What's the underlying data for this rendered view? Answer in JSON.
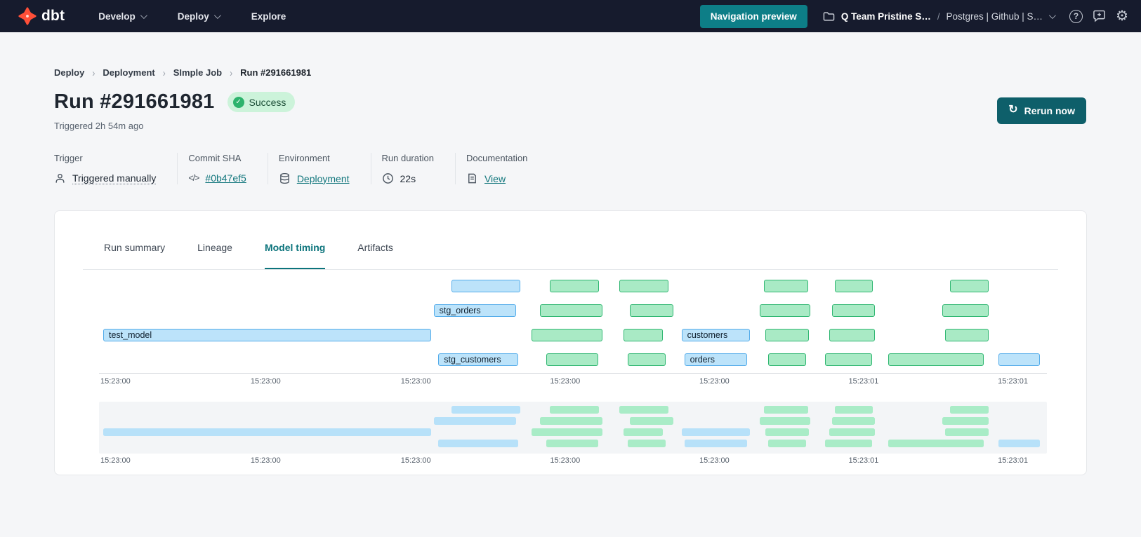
{
  "nav": {
    "brand": "dbt",
    "menus": [
      {
        "label": "Develop",
        "chevron": true
      },
      {
        "label": "Deploy",
        "chevron": true
      },
      {
        "label": "Explore",
        "chevron": false
      }
    ],
    "preview_button": "Navigation preview",
    "account": "Q Team Pristine S…",
    "account_separator": "/",
    "project": "Postgres | Github | S…",
    "help_glyph": "?",
    "gear_glyph": "⚙"
  },
  "breadcrumb": {
    "separator": "›",
    "items": [
      "Deploy",
      "Deployment",
      "SImple Job",
      "Run #291661981"
    ]
  },
  "header": {
    "title": "Run #291661981",
    "status": "Success",
    "check_glyph": "✓",
    "triggered": "Triggered 2h 54m ago",
    "rerun_label": "Rerun now",
    "rerun_glyph": "↻"
  },
  "meta": {
    "groups": [
      {
        "label": "Trigger",
        "value": "Triggered manually",
        "icon": "person-icon",
        "style": "dotted"
      },
      {
        "label": "Commit SHA",
        "value": "#0b47ef5",
        "icon": "code-icon",
        "style": "link"
      },
      {
        "label": "Environment",
        "value": "Deployment",
        "icon": "database-icon",
        "style": "link"
      },
      {
        "label": "Run duration",
        "value": "22s",
        "icon": "clock-icon",
        "style": "plain"
      },
      {
        "label": "Documentation",
        "value": "View",
        "icon": "document-icon",
        "style": "link"
      }
    ]
  },
  "panel": {
    "tabs": [
      "Run summary",
      "Lineage",
      "Model timing",
      "Artifacts"
    ],
    "active_tab": "Model timing"
  },
  "chart_data": {
    "type": "gantt",
    "title": "Model timing",
    "time_axis": {
      "labels": [
        {
          "text": "15:23:00",
          "x_pct": 1.3
        },
        {
          "text": "15:23:00",
          "x_pct": 17.3
        },
        {
          "text": "15:23:00",
          "x_pct": 33.3
        },
        {
          "text": "15:23:00",
          "x_pct": 49.2
        },
        {
          "text": "15:23:00",
          "x_pct": 65.1
        },
        {
          "text": "15:23:01",
          "x_pct": 81.0
        },
        {
          "text": "15:23:01",
          "x_pct": 96.9
        }
      ]
    },
    "legend_colors": {
      "model_blue": "#bce3fa",
      "test_green": "#a9eac5"
    },
    "rows": [
      {
        "bars": [
          {
            "x": 37.1,
            "w": 7.3,
            "c": "blue"
          },
          {
            "x": 47.6,
            "w": 5.2,
            "c": "green"
          },
          {
            "x": 55.0,
            "w": 5.2,
            "c": "green"
          },
          {
            "x": 70.4,
            "w": 4.7,
            "c": "green"
          },
          {
            "x": 77.9,
            "w": 4.1,
            "c": "green"
          },
          {
            "x": 90.2,
            "w": 4.1,
            "c": "green"
          }
        ]
      },
      {
        "bars": [
          {
            "x": 35.2,
            "w": 8.8,
            "c": "blue",
            "label": "stg_orders"
          },
          {
            "x": 46.5,
            "w": 6.7,
            "c": "green"
          },
          {
            "x": 56.1,
            "w": 4.6,
            "c": "green"
          },
          {
            "x": 69.9,
            "w": 5.4,
            "c": "green"
          },
          {
            "x": 77.6,
            "w": 4.6,
            "c": "green"
          },
          {
            "x": 89.4,
            "w": 4.9,
            "c": "green"
          }
        ]
      },
      {
        "bars": [
          {
            "x": 0.0,
            "w": 34.9,
            "c": "blue",
            "label": "test_model"
          },
          {
            "x": 45.6,
            "w": 7.6,
            "c": "green"
          },
          {
            "x": 55.4,
            "w": 4.2,
            "c": "green"
          },
          {
            "x": 61.6,
            "w": 7.3,
            "c": "blue",
            "label": "customers"
          },
          {
            "x": 70.5,
            "w": 4.7,
            "c": "green"
          },
          {
            "x": 77.3,
            "w": 4.9,
            "c": "green"
          },
          {
            "x": 89.7,
            "w": 4.6,
            "c": "green"
          }
        ]
      },
      {
        "bars": [
          {
            "x": 35.7,
            "w": 8.5,
            "c": "blue",
            "label": "stg_customers"
          },
          {
            "x": 47.2,
            "w": 5.5,
            "c": "green"
          },
          {
            "x": 55.9,
            "w": 4.0,
            "c": "green"
          },
          {
            "x": 61.9,
            "w": 6.7,
            "c": "blue",
            "label": "orders"
          },
          {
            "x": 70.8,
            "w": 4.1,
            "c": "green"
          },
          {
            "x": 76.9,
            "w": 5.0,
            "c": "green"
          },
          {
            "x": 83.6,
            "w": 10.2,
            "c": "green"
          },
          {
            "x": 95.4,
            "w": 4.4,
            "c": "blue"
          }
        ]
      }
    ]
  }
}
